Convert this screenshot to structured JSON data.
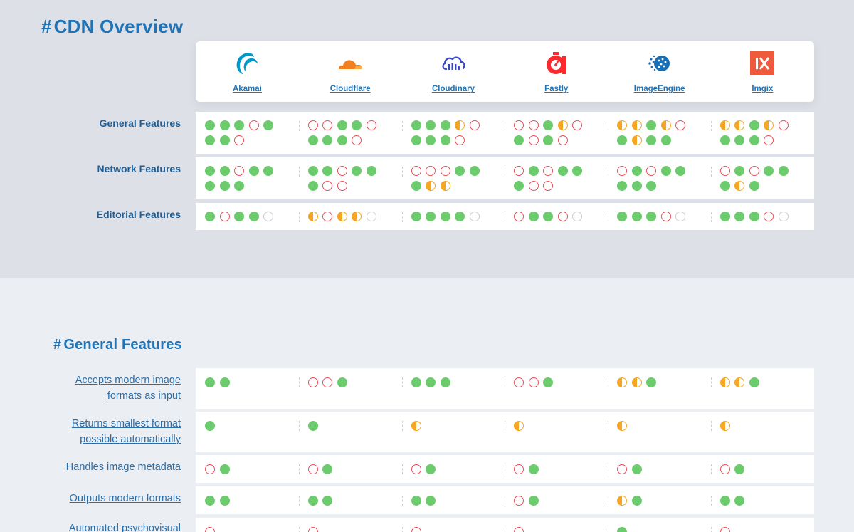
{
  "overview": {
    "hash": "#",
    "title": "CDN Overview",
    "vendors": [
      {
        "name": "Akamai",
        "icon": "akamai-logo-icon",
        "color": "#0099cc"
      },
      {
        "name": "Cloudflare",
        "icon": "cloudflare-logo-icon",
        "color": "#f38020"
      },
      {
        "name": "Cloudinary",
        "icon": "cloudinary-logo-icon",
        "color": "#3448c5"
      },
      {
        "name": "Fastly",
        "icon": "fastly-logo-icon",
        "color": "#ff282d"
      },
      {
        "name": "ImageEngine",
        "icon": "imageengine-logo-icon",
        "color": "#1b6fb5"
      },
      {
        "name": "Imgix",
        "icon": "imgix-logo-icon",
        "color": "#ee5a3b"
      }
    ],
    "categories": [
      {
        "label": "General Features",
        "scores": [
          [
            "full",
            "full",
            "full",
            "none",
            "full",
            "full",
            "full",
            "none"
          ],
          [
            "none",
            "none",
            "full",
            "full",
            "none",
            "full",
            "full",
            "full",
            "none"
          ],
          [
            "full",
            "full",
            "full",
            "partial",
            "none",
            "full",
            "full",
            "full",
            "none"
          ],
          [
            "none",
            "none",
            "full",
            "partial",
            "none",
            "full",
            "none",
            "full",
            "none"
          ],
          [
            "partial",
            "partial",
            "full",
            "partial",
            "none",
            "full",
            "partial",
            "full",
            "full"
          ],
          [
            "partial",
            "partial",
            "full",
            "partial",
            "none",
            "full",
            "full",
            "full",
            "none"
          ]
        ]
      },
      {
        "label": "Network Features",
        "scores": [
          [
            "full",
            "full",
            "none",
            "full",
            "full",
            "full",
            "full",
            "full"
          ],
          [
            "full",
            "full",
            "none",
            "full",
            "full",
            "full",
            "none",
            "none"
          ],
          [
            "none",
            "none",
            "none",
            "full",
            "full",
            "full",
            "partial",
            "partial"
          ],
          [
            "none",
            "full",
            "none",
            "full",
            "full",
            "full",
            "none",
            "none"
          ],
          [
            "none",
            "full",
            "none",
            "full",
            "full",
            "full",
            "full",
            "full"
          ],
          [
            "none",
            "full",
            "none",
            "full",
            "full",
            "full",
            "partial",
            "full"
          ]
        ]
      },
      {
        "label": "Editorial Features",
        "scores": [
          [
            "full",
            "none",
            "full",
            "full",
            "na"
          ],
          [
            "partial",
            "none",
            "partial",
            "partial",
            "na"
          ],
          [
            "full",
            "full",
            "full",
            "full",
            "na"
          ],
          [
            "none",
            "full",
            "full",
            "none",
            "na"
          ],
          [
            "full",
            "full",
            "full",
            "none",
            "na"
          ],
          [
            "full",
            "full",
            "full",
            "none",
            "na"
          ]
        ]
      }
    ]
  },
  "general": {
    "hash": "#",
    "title": "General Features",
    "features": [
      {
        "label": "Accepts modern image formats as input",
        "scores": [
          [
            "full",
            "full"
          ],
          [
            "none",
            "none",
            "full"
          ],
          [
            "full",
            "full",
            "full"
          ],
          [
            "none",
            "none",
            "full"
          ],
          [
            "partial",
            "partial",
            "full"
          ],
          [
            "partial",
            "partial",
            "full"
          ]
        ]
      },
      {
        "label": "Returns smallest format possible automatically",
        "scores": [
          [
            "full"
          ],
          [
            "full"
          ],
          [
            "partial"
          ],
          [
            "partial"
          ],
          [
            "partial"
          ],
          [
            "partial"
          ]
        ]
      },
      {
        "label": "Handles image metadata",
        "scores": [
          [
            "none",
            "full"
          ],
          [
            "none",
            "full"
          ],
          [
            "none",
            "full"
          ],
          [
            "none",
            "full"
          ],
          [
            "none",
            "full"
          ],
          [
            "none",
            "full"
          ]
        ]
      },
      {
        "label": "Outputs modern formats",
        "scores": [
          [
            "full",
            "full"
          ],
          [
            "full",
            "full"
          ],
          [
            "full",
            "full"
          ],
          [
            "none",
            "full"
          ],
          [
            "partial",
            "full"
          ],
          [
            "full",
            "full"
          ]
        ]
      },
      {
        "label": "Automated psychovisual",
        "scores": [
          [
            "none"
          ],
          [
            "none"
          ],
          [
            "none"
          ],
          [
            "none"
          ],
          [
            "full"
          ],
          [
            "none"
          ]
        ]
      }
    ]
  },
  "legend_colors": {
    "full": "#6ccb6c",
    "none": "#e8505b",
    "partial": "#f5a623",
    "na": "#c9ced6"
  }
}
